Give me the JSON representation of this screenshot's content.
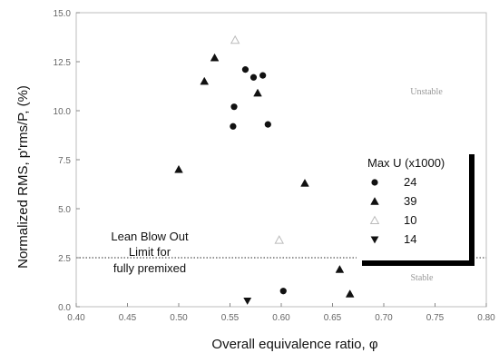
{
  "chart_data": {
    "type": "scatter",
    "xlabel": "Overall equivalence ratio, φ",
    "ylabel": "Normalized RMS, p'rms/P, (%)",
    "xlim": [
      0.4,
      0.8
    ],
    "ylim": [
      0.0,
      15.0
    ],
    "x_ticks": [
      "0.40",
      "0.45",
      "0.50",
      "0.55",
      "0.60",
      "0.65",
      "0.70",
      "0.75",
      "0.80"
    ],
    "y_ticks": [
      "0.0",
      "2.5",
      "5.0",
      "7.5",
      "10.0",
      "12.5",
      "15.0"
    ],
    "grid": false,
    "legend": {
      "title": "Max U (x1000)",
      "position": "right"
    },
    "series": [
      {
        "name": "24",
        "marker": "circle",
        "color": "#111111",
        "points": [
          [
            0.553,
            9.2
          ],
          [
            0.554,
            10.2
          ],
          [
            0.565,
            12.1
          ],
          [
            0.573,
            11.7
          ],
          [
            0.582,
            11.8
          ],
          [
            0.587,
            9.3
          ],
          [
            0.602,
            0.8
          ]
        ]
      },
      {
        "name": "39",
        "marker": "triangle-up",
        "color": "#111111",
        "points": [
          [
            0.5,
            7.0
          ],
          [
            0.525,
            11.5
          ],
          [
            0.535,
            12.7
          ],
          [
            0.577,
            10.9
          ],
          [
            0.623,
            6.3
          ],
          [
            0.657,
            1.9
          ],
          [
            0.667,
            0.65
          ]
        ]
      },
      {
        "name": "10",
        "marker": "triangle-up-open",
        "color": "#bbbbbb",
        "points": [
          [
            0.555,
            13.6
          ],
          [
            0.598,
            3.4
          ]
        ]
      },
      {
        "name": "14",
        "marker": "triangle-down",
        "color": "#111111",
        "points": [
          [
            0.567,
            0.3
          ]
        ]
      }
    ],
    "reference_line": {
      "y": 2.5,
      "style": "dotted"
    },
    "annotations": {
      "lbo_line1": "Lean Blow Out",
      "lbo_line2": "Limit for",
      "lbo_line3": "fully premixed",
      "unstable": "Unstable",
      "stable": "Stable"
    }
  }
}
